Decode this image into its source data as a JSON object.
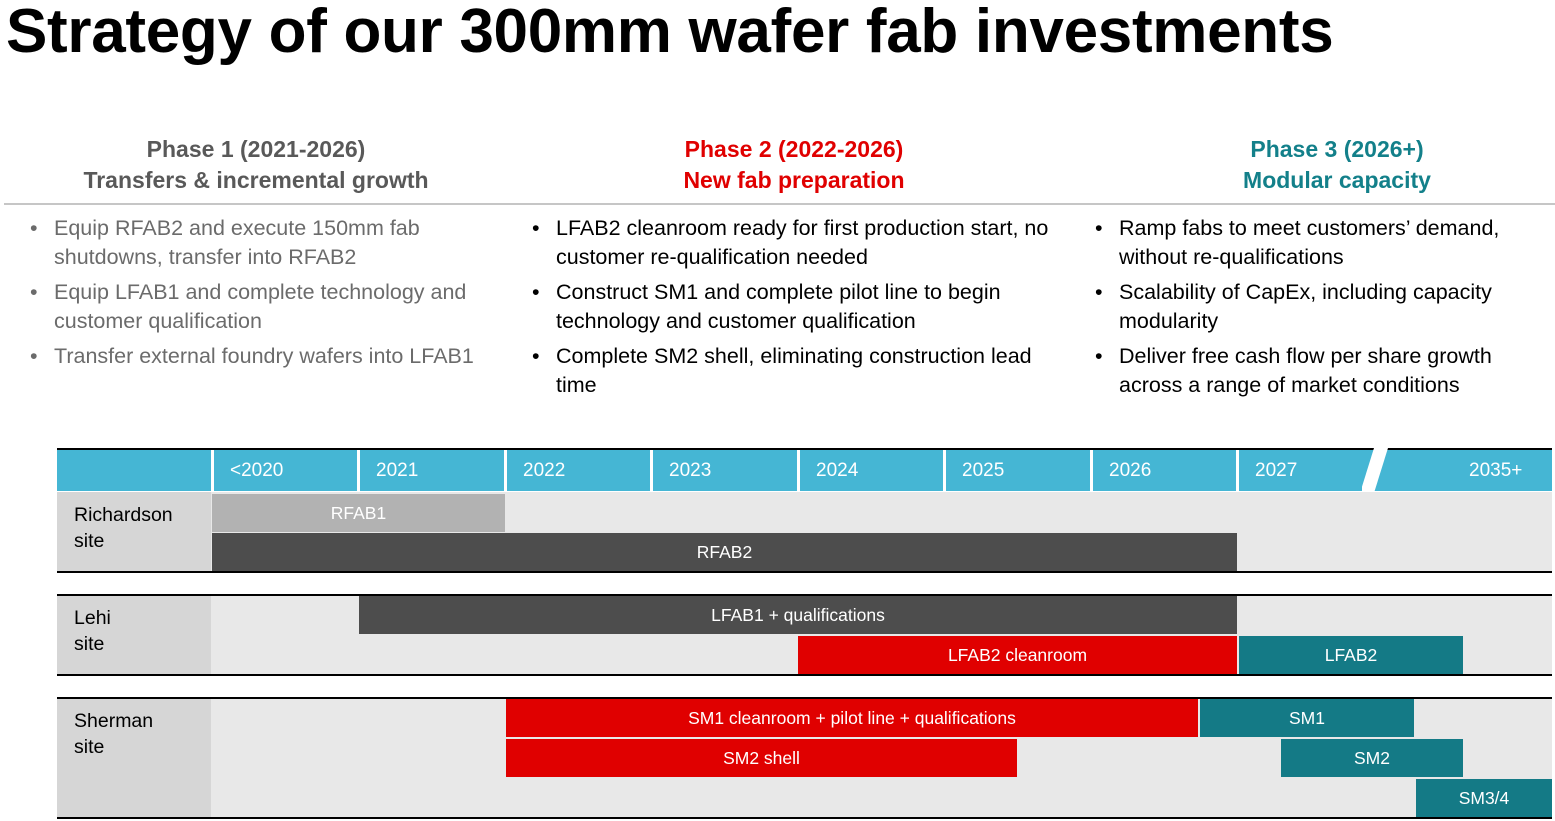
{
  "title": "Strategy of our 300mm wafer fab investments",
  "colors": {
    "phase1": "#595959",
    "phase2": "#e00000",
    "phase3": "#13808a",
    "header_bar": "#45b6d4",
    "bar_light": "#b2b2b2",
    "bar_dark": "#4d4d4d",
    "bar_red": "#e00000",
    "bar_teal": "#147a86"
  },
  "phases": [
    {
      "line1": "Phase 1 (2021-2026)",
      "line2": "Transfers & incremental growth",
      "bullets": [
        "Equip RFAB2 and execute 150mm fab shutdowns, transfer into RFAB2",
        "Equip LFAB1 and complete technology and customer qualification",
        "Transfer external foundry wafers into LFAB1"
      ]
    },
    {
      "line1": "Phase 2 (2022-2026)",
      "line2": "New fab preparation",
      "bullets": [
        "LFAB2 cleanroom ready for first production start, no customer re-qualification needed",
        "Construct SM1 and complete pilot line to begin technology and customer qualification",
        "Complete SM2 shell, eliminating construction lead time"
      ]
    },
    {
      "line1": "Phase 3 (2026+)",
      "line2": "Modular capacity",
      "bullets": [
        "Ramp fabs to meet customers’ demand, without re-qualifications",
        "Scalability of CapEx, including capacity modularity",
        "Deliver free cash flow per share growth across a range of market conditions"
      ]
    }
  ],
  "timeline": {
    "years": [
      "<2020",
      "2021",
      "2022",
      "2023",
      "2024",
      "2025",
      "2026",
      "2027",
      "2035+"
    ],
    "sites": [
      {
        "line1": "Richardson",
        "line2": "site"
      },
      {
        "line1": "Lehi",
        "line2": "site"
      },
      {
        "line1": "Sherman",
        "line2": "site"
      }
    ],
    "bars": {
      "rfab1": "RFAB1",
      "rfab2": "RFAB2",
      "lfab1": "LFAB1 + qualifications",
      "lfab2_cleanroom": "LFAB2 cleanroom",
      "lfab2": "LFAB2",
      "sm1_cleanroom": "SM1 cleanroom + pilot line + qualifications",
      "sm1": "SM1",
      "sm2_shell": "SM2 shell",
      "sm2": "SM2",
      "sm34": "SM3/4"
    }
  }
}
